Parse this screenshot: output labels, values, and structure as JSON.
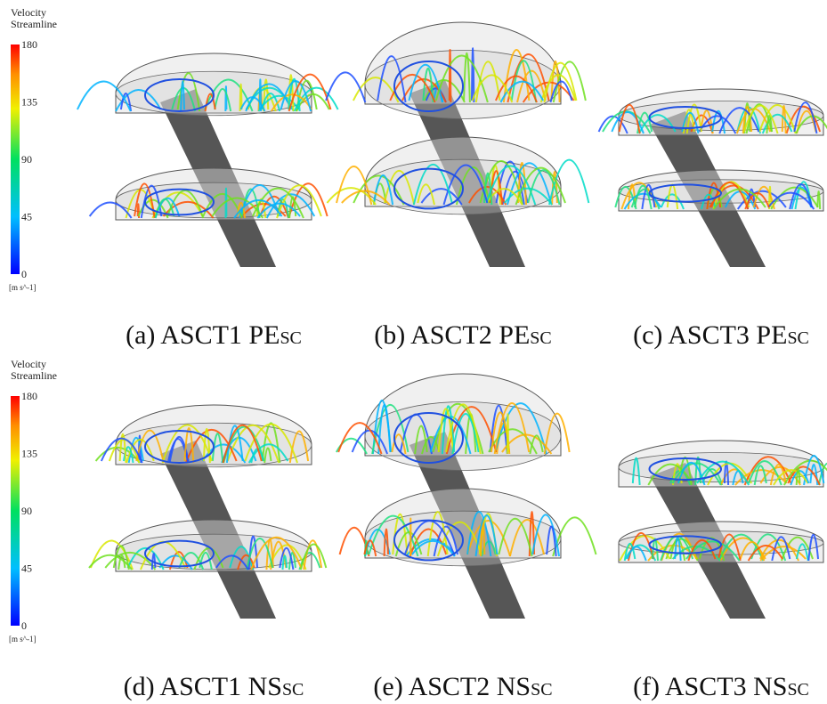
{
  "legends": [
    {
      "title": [
        "Velocity",
        "Streamline"
      ],
      "ticks": [
        "180",
        "135",
        "90",
        "45",
        "0"
      ],
      "unit": "[m s^-1]"
    },
    {
      "title": [
        "Velocity",
        "Streamline"
      ],
      "ticks": [
        "180",
        "135",
        "90",
        "45",
        "0"
      ],
      "unit": "[m s^-1]"
    }
  ],
  "panels": [
    {
      "label": "(a) ASCT1 PE",
      "subscript": "SC"
    },
    {
      "label": "(b) ASCT2 PE",
      "subscript": "SC"
    },
    {
      "label": "(c) ASCT3 PE",
      "subscript": "SC"
    },
    {
      "label": "(d) ASCT1 NS",
      "subscript": "SC"
    },
    {
      "label": "(e) ASCT2 NS",
      "subscript": "SC"
    },
    {
      "label": "(f) ASCT3 NS",
      "subscript": "SC"
    }
  ]
}
